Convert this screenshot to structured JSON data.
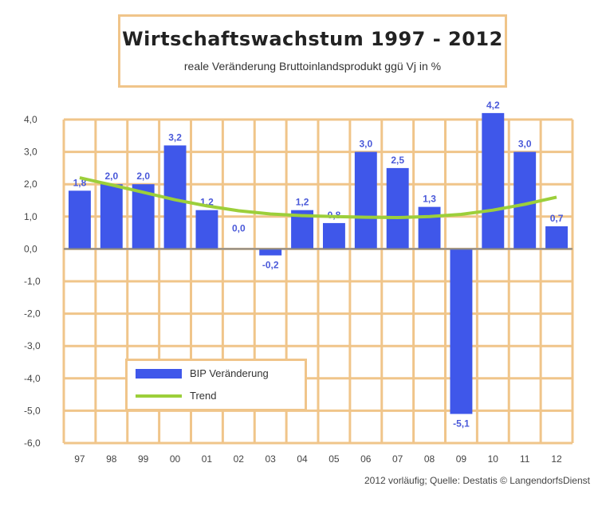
{
  "chart_data": {
    "type": "bar",
    "title": "Wirtschaftswachstum 1997 - 2012",
    "subtitle": "reale Veränderung Bruttoinlandsprodukt ggü Vj in %",
    "categories": [
      "97",
      "98",
      "99",
      "00",
      "01",
      "02",
      "03",
      "04",
      "05",
      "06",
      "07",
      "08",
      "09",
      "10",
      "11",
      "12"
    ],
    "series": [
      {
        "name": "BIP Veränderung",
        "values": [
          1.8,
          2.0,
          2.0,
          3.2,
          1.2,
          0.0,
          -0.2,
          1.2,
          0.8,
          3.0,
          2.5,
          1.3,
          -5.1,
          4.2,
          3.0,
          0.7
        ],
        "labels": [
          "1,8",
          "2,0",
          "2,0",
          "3,2",
          "1,2",
          "0,0",
          "-0,2",
          "1,2",
          "0,8",
          "3,0",
          "2,5",
          "1,3",
          "-5,1",
          "4,2",
          "3,0",
          "0,7"
        ]
      },
      {
        "name": "Trend",
        "type": "line",
        "values": [
          2.2,
          1.98,
          1.75,
          1.52,
          1.33,
          1.18,
          1.08,
          1.03,
          1.0,
          0.98,
          0.97,
          1.0,
          1.07,
          1.2,
          1.38,
          1.6
        ]
      }
    ],
    "ylim": [
      -6.0,
      4.0
    ],
    "yticks": [
      4.0,
      3.0,
      2.0,
      1.0,
      0.0,
      -1.0,
      -2.0,
      -3.0,
      -4.0,
      -5.0,
      -6.0
    ],
    "ytick_labels": [
      "4,0",
      "3,0",
      "2,0",
      "1,0",
      "0,0",
      "-1,0",
      "-2,0",
      "-3,0",
      "-4,0",
      "-5,0",
      "-6,0"
    ],
    "grid": true,
    "legend_position": "lower-left",
    "colors": {
      "bar": "#3f57ea",
      "trend": "#9ccf3a",
      "grid": "#f0c58a",
      "zero": "#888888"
    }
  },
  "footer": "2012 vorläufig; Quelle: Destatis © LangendorfsDienst"
}
